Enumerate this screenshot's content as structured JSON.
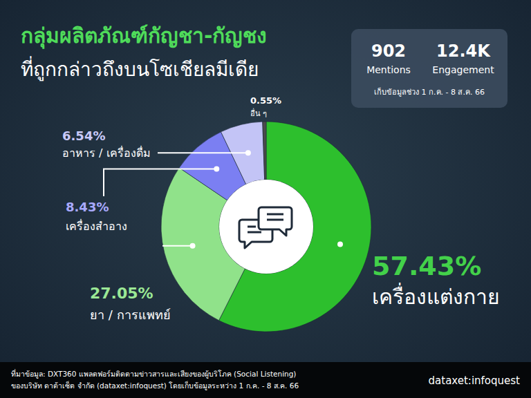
{
  "chart_data": {
    "type": "pie",
    "title": "กลุ่มผลิตภัณฑ์กัญชา-กัญชง",
    "subtitle": "ที่ถูกกล่าวถึงบนโซเชียลมีเดีย",
    "categories": [
      "เครื่องแต่งกาย",
      "ยา / การแพทย์",
      "เครื่องสำอาง",
      "อาหาร / เครื่องดื่ม",
      "อื่น ๆ"
    ],
    "values": [
      57.43,
      27.05,
      8.43,
      6.54,
      0.55
    ],
    "value_labels": [
      "57.43%",
      "27.05%",
      "8.43%",
      "6.54%",
      "0.55%"
    ],
    "colors": [
      "#2dbf2d",
      "#90e28a",
      "#7b7ff2",
      "#c3c4f6",
      "#4a4a4a"
    ],
    "data_labels": true,
    "stats": [
      {
        "value": 902,
        "label": "Mentions"
      },
      {
        "value": 12400,
        "value_label": "12.4K",
        "label": "Engagement"
      }
    ],
    "period": "เก็บข้อมูลช่วง 1 ก.ค. - 8 ส.ค. 66",
    "source": [
      "ที่มาข้อมูล: DXT360 แพลตฟอร์มติดตามข่าวสารและเสียงของผู้บริโภค (Social Listening)",
      "ของบริษัท ดาต้าเซ็ต จำกัด (dataxet:infoquest) โดยเก็บข้อมูลระหว่าง 1 ก.ค. - 8 ส.ค. 66"
    ],
    "brand": "dataxet:infoquest"
  }
}
